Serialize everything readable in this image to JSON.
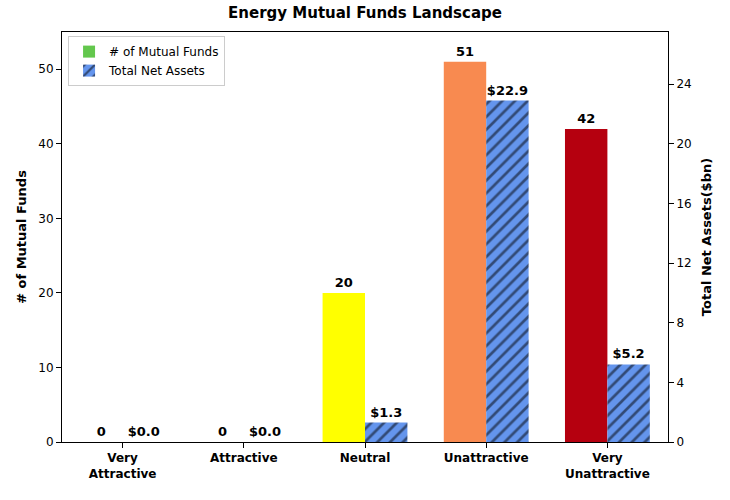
{
  "chart_data": {
    "type": "bar",
    "title": "Energy Mutual Funds Landscape",
    "categories": [
      "Very\nAttractive",
      "Attractive",
      "Neutral",
      "Unattractive",
      "Very\nUnattractive"
    ],
    "y_label": "# of Mutual Funds",
    "y2_label": "Total Net Assets($bn)",
    "ylim": [
      0,
      55
    ],
    "yticks": [
      0,
      10,
      20,
      30,
      40,
      50
    ],
    "y2lim": [
      0,
      27.5
    ],
    "y2ticks": [
      0,
      4,
      8,
      12,
      16,
      20,
      24
    ],
    "grid": false,
    "legend": "upper left",
    "data_labels": true,
    "series": [
      {
        "name": "# of Mutual Funds",
        "values": [
          0,
          0,
          20,
          51,
          42
        ],
        "colors": [
          "#63c74d",
          "#a8d86e",
          "#ffff00",
          "#f88a50",
          "#b5000f"
        ]
      },
      {
        "name": "Total Net Assets",
        "axis": "y2",
        "color": "#6495ed",
        "marker": "hatch",
        "values": [
          0,
          0,
          1.3,
          22.9,
          5.2
        ],
        "value_labels": [
          "$0.0",
          "$0.0",
          "$1.3",
          "$22.9",
          "$5.2"
        ]
      }
    ]
  }
}
